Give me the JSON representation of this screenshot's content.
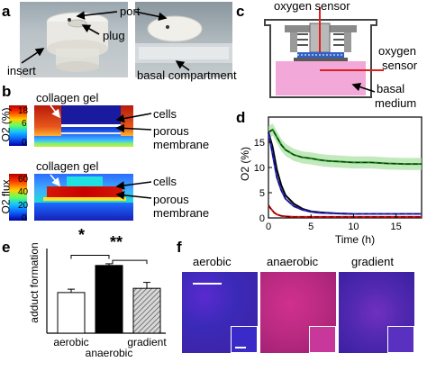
{
  "panels": {
    "a": {
      "label": "a",
      "annotations": {
        "port": "port",
        "plug": "plug",
        "insert": "insert",
        "basal": "basal compartment"
      }
    },
    "b": {
      "label": "b",
      "top": {
        "gel": "collagen gel",
        "cells": "cells",
        "membrane1": "porous",
        "membrane2": "membrane",
        "ylabel": "O2 (%)",
        "ticks": [
          "18",
          "6",
          "0"
        ]
      },
      "bottom": {
        "gel": "collagen gel",
        "cells": "cells",
        "membrane1": "porous",
        "membrane2": "membrane",
        "ylabel": "O2 flux",
        "ticks": [
          "60",
          "40",
          "20",
          "0"
        ]
      }
    },
    "c": {
      "label": "c",
      "sensor_top": "oxygen sensor",
      "sensor_right1": "oxygen",
      "sensor_right2": "sensor",
      "medium1": "basal",
      "medium2": "medium"
    },
    "d": {
      "label": "d"
    },
    "e": {
      "label": "e",
      "sig1": "*",
      "sig2": "**"
    },
    "f": {
      "label": "f",
      "titles": [
        "aerobic",
        "anaerobic",
        "gradient"
      ]
    }
  },
  "chart_data": [
    {
      "type": "line",
      "panel": "d",
      "xlabel": "Time (h)",
      "ylabel": "O2 (%)",
      "xlim": [
        0,
        18
      ],
      "ylim": [
        0,
        20
      ],
      "xticks": [
        0,
        5,
        10,
        15
      ],
      "yticks": [
        0,
        5,
        10,
        15
      ],
      "series": [
        {
          "color": "#1a8a1a",
          "x": [
            0,
            0.5,
            1,
            1.5,
            2,
            3,
            4,
            5,
            6,
            7,
            8,
            10,
            12,
            14,
            16,
            18
          ],
          "y": [
            17,
            17.5,
            16,
            14.5,
            13.5,
            12.5,
            12,
            11.8,
            11.5,
            11.3,
            11.2,
            11,
            11,
            10.8,
            10.7,
            10.7
          ]
        },
        {
          "color": "#000000",
          "x": [
            0,
            0.5,
            1,
            1.5,
            2,
            3,
            4,
            5,
            6,
            8,
            10,
            12,
            15,
            18
          ],
          "y": [
            17,
            14,
            9.5,
            6.5,
            4.5,
            2.8,
            1.8,
            1.3,
            1.1,
            0.9,
            0.8,
            0.8,
            0.8,
            0.8
          ]
        },
        {
          "color": "#2a2ad0",
          "x": [
            0,
            0.5,
            1,
            1.5,
            2,
            3,
            4,
            5,
            6,
            8,
            10,
            12,
            15,
            18
          ],
          "y": [
            17,
            12.5,
            8,
            5.5,
            3.8,
            2.3,
            1.6,
            1.2,
            1.0,
            0.9,
            0.8,
            0.8,
            0.8,
            0.8
          ]
        },
        {
          "color": "#e01010",
          "x": [
            0,
            0.3,
            0.7,
            1,
            1.5,
            2,
            3,
            5,
            10,
            18
          ],
          "y": [
            2.5,
            1.8,
            1.0,
            0.7,
            0.4,
            0.3,
            0.2,
            0.2,
            0.2,
            0.2
          ]
        }
      ]
    },
    {
      "type": "bar",
      "panel": "e",
      "categories": [
        "aerobic",
        "anaerobic",
        "gradient"
      ],
      "values": [
        0.48,
        0.8,
        0.53
      ],
      "errors": [
        0.04,
        0.02,
        0.07
      ],
      "ylabel": "adduct formation",
      "ylim": [
        0,
        1.0
      ],
      "colors": [
        "#ffffff",
        "#000000",
        "hatched"
      ]
    }
  ]
}
